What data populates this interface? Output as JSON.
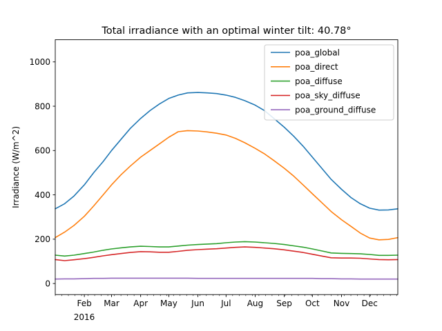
{
  "chart_data": {
    "type": "line",
    "title": "Total irradiance with an optimal winter tilt: 40.78°",
    "xlabel": "",
    "ylabel": "Irradiance (W/m^2)",
    "x_range": [
      "2016-01-01",
      "2016-12-31"
    ],
    "ylim": [
      -50,
      1100
    ],
    "y_ticks": [
      0,
      200,
      400,
      600,
      800,
      1000
    ],
    "x_ticks": [
      {
        "date": "2016-02-01",
        "label": "Feb"
      },
      {
        "date": "2016-03-01",
        "label": "Mar"
      },
      {
        "date": "2016-04-01",
        "label": "Apr"
      },
      {
        "date": "2016-05-01",
        "label": "May"
      },
      {
        "date": "2016-06-01",
        "label": "Jun"
      },
      {
        "date": "2016-07-01",
        "label": "Jul"
      },
      {
        "date": "2016-08-01",
        "label": "Aug"
      },
      {
        "date": "2016-09-01",
        "label": "Sep"
      },
      {
        "date": "2016-10-01",
        "label": "Oct"
      },
      {
        "date": "2016-11-01",
        "label": "Nov"
      },
      {
        "date": "2016-12-01",
        "label": "Dec"
      }
    ],
    "year_label": "2016",
    "grid": false,
    "legend_position": "top-right",
    "x": [
      "2016-01-01",
      "2016-01-11",
      "2016-01-21",
      "2016-02-01",
      "2016-02-11",
      "2016-02-21",
      "2016-03-01",
      "2016-03-11",
      "2016-03-21",
      "2016-04-01",
      "2016-04-11",
      "2016-04-21",
      "2016-05-01",
      "2016-05-11",
      "2016-05-21",
      "2016-06-01",
      "2016-06-11",
      "2016-06-21",
      "2016-07-01",
      "2016-07-11",
      "2016-07-21",
      "2016-08-01",
      "2016-08-11",
      "2016-08-21",
      "2016-09-01",
      "2016-09-11",
      "2016-09-21",
      "2016-10-01",
      "2016-10-11",
      "2016-10-21",
      "2016-11-01",
      "2016-11-11",
      "2016-11-21",
      "2016-12-01",
      "2016-12-11",
      "2016-12-21",
      "2016-12-31"
    ],
    "series": [
      {
        "name": "poa_global",
        "color": "#1f77b4",
        "values": [
          337,
          360,
          395,
          445,
          500,
          550,
          600,
          650,
          700,
          745,
          780,
          810,
          835,
          850,
          860,
          862,
          860,
          857,
          850,
          840,
          825,
          805,
          780,
          745,
          705,
          665,
          620,
          570,
          520,
          470,
          425,
          388,
          360,
          340,
          331,
          332,
          337
        ]
      },
      {
        "name": "poa_direct",
        "color": "#ff7f0e",
        "values": [
          207,
          232,
          262,
          303,
          350,
          400,
          445,
          490,
          530,
          570,
          600,
          630,
          660,
          685,
          690,
          688,
          684,
          678,
          670,
          655,
          635,
          610,
          585,
          555,
          520,
          485,
          445,
          405,
          365,
          325,
          288,
          258,
          228,
          205,
          197,
          199,
          207
        ]
      },
      {
        "name": "poa_diffuse",
        "color": "#2ca02c",
        "values": [
          128,
          124,
          128,
          135,
          142,
          150,
          156,
          161,
          165,
          168,
          167,
          165,
          165,
          169,
          173,
          176,
          178,
          180,
          184,
          187,
          189,
          187,
          184,
          181,
          176,
          170,
          164,
          156,
          147,
          138,
          136,
          135,
          134,
          131,
          127,
          127,
          128
        ]
      },
      {
        "name": "poa_sky_diffuse",
        "color": "#d62728",
        "values": [
          108,
          103,
          107,
          112,
          118,
          125,
          130,
          135,
          140,
          144,
          143,
          141,
          141,
          145,
          150,
          153,
          155,
          157,
          160,
          163,
          165,
          163,
          160,
          157,
          152,
          146,
          140,
          132,
          124,
          116,
          115,
          115,
          114,
          111,
          108,
          107,
          108
        ]
      },
      {
        "name": "poa_ground_diffuse",
        "color": "#9467bd",
        "values": [
          20,
          21,
          21,
          22,
          23,
          23,
          24,
          24,
          24,
          24,
          24,
          24,
          24,
          24,
          24,
          23,
          23,
          23,
          23,
          23,
          23,
          23,
          23,
          23,
          23,
          23,
          23,
          23,
          22,
          22,
          21,
          21,
          20,
          20,
          20,
          20,
          20
        ]
      }
    ]
  }
}
